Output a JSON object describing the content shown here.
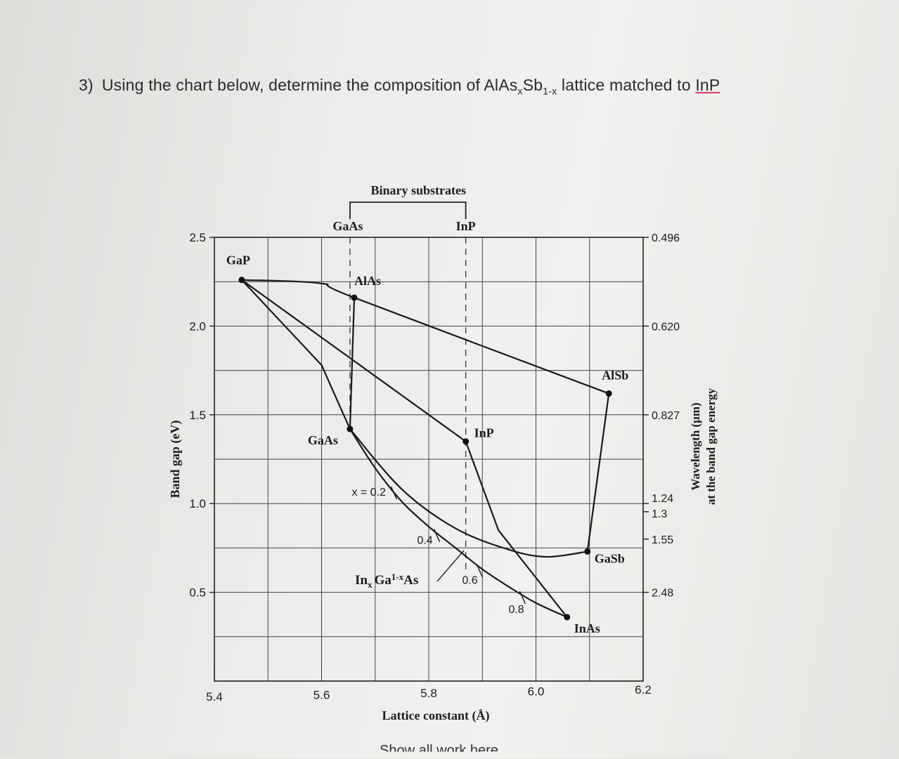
{
  "question": {
    "number": "3)",
    "text_before": "Using the chart below, determine the composition of AlAs",
    "sub1": "x",
    "mid": "Sb",
    "sub2": "1-x",
    "text_after": " lattice matched to ",
    "target": "InP"
  },
  "chart_data": {
    "type": "line",
    "title": "",
    "xlabel": "Lattice constant (Å)",
    "ylabel": "Band gap (eV)",
    "y2label_line1": "Wavelength (μm)",
    "y2label_line2": "at the band gap energy",
    "xlim": [
      5.4,
      6.2
    ],
    "ylim": [
      0.0,
      2.5
    ],
    "x_ticks": [
      "5.4",
      "5.6",
      "5.8",
      "6.0",
      "6.2"
    ],
    "y_ticks": [
      "0.5",
      "1.0",
      "1.5",
      "2.0",
      "2.5"
    ],
    "y2_ticks": [
      {
        "label": "0.496",
        "energy": 2.5
      },
      {
        "label": "0.620",
        "energy": 2.0
      },
      {
        "label": "0.827",
        "energy": 1.5
      },
      {
        "label": "1.24",
        "energy": 1.0
      },
      {
        "label": "1.3",
        "energy": 0.954
      },
      {
        "label": "1.55",
        "energy": 0.8
      },
      {
        "label": "2.48",
        "energy": 0.5
      }
    ],
    "grid": true,
    "binary_substrates": {
      "label": "Binary substrates",
      "GaAs": "GaAs",
      "InP": "InP",
      "x": [
        5.653,
        5.869
      ]
    },
    "points": [
      {
        "name": "GaP",
        "x": 5.451,
        "y": 2.26
      },
      {
        "name": "AlAs",
        "x": 5.661,
        "y": 2.16
      },
      {
        "name": "AlSb",
        "x": 6.136,
        "y": 1.62
      },
      {
        "name": "GaAs",
        "x": 5.653,
        "y": 1.42
      },
      {
        "name": "InP",
        "x": 5.869,
        "y": 1.35
      },
      {
        "name": "GaSb",
        "x": 6.096,
        "y": 0.73
      },
      {
        "name": "InAs",
        "x": 6.058,
        "y": 0.36
      }
    ],
    "curves": [
      {
        "name": "GaP-AlAs-AlSb",
        "x": [
          5.451,
          5.6,
          5.661,
          6.136
        ],
        "y": [
          2.26,
          2.24,
          2.16,
          1.62
        ]
      },
      {
        "name": "GaP-GaAs",
        "x": [
          5.451,
          5.6,
          5.653
        ],
        "y": [
          2.26,
          1.78,
          1.42
        ]
      },
      {
        "name": "AlAs-GaAs",
        "x": [
          5.661,
          5.653
        ],
        "y": [
          2.16,
          1.42
        ]
      },
      {
        "name": "GaP-InP",
        "x": [
          5.451,
          5.869
        ],
        "y": [
          2.26,
          1.35
        ]
      },
      {
        "name": "InP-InAs",
        "x": [
          5.869,
          5.93,
          6.058
        ],
        "y": [
          1.35,
          0.85,
          0.36
        ]
      },
      {
        "name": "AlSb-GaSb",
        "x": [
          6.136,
          6.096
        ],
        "y": [
          1.62,
          0.73
        ]
      },
      {
        "name": "GaAs-GaSb",
        "x": [
          5.653,
          5.75,
          5.85,
          5.95,
          6.02,
          6.096
        ],
        "y": [
          1.42,
          1.08,
          0.86,
          0.74,
          0.7,
          0.73
        ]
      },
      {
        "name": "InxGa1-xAs",
        "x": [
          5.653,
          5.7,
          5.75,
          5.8,
          5.85,
          5.9,
          5.95,
          6.0,
          6.058
        ],
        "y": [
          1.42,
          1.2,
          1.01,
          0.87,
          0.75,
          0.63,
          0.53,
          0.44,
          0.36
        ]
      }
    ],
    "composition_marks": [
      {
        "label": "x = 0.2",
        "x": 5.735,
        "y": 1.06
      },
      {
        "label": "0.4",
        "x": 5.815,
        "y": 0.82
      },
      {
        "label": "0.6",
        "x": 5.895,
        "y": 0.62
      },
      {
        "label": "0.8",
        "x": 5.975,
        "y": 0.47
      }
    ],
    "series_label": {
      "text_in": "In",
      "sub_x": "x",
      "text_ga": "Ga",
      "sub_1x": "1-x",
      "text_as": "As"
    }
  },
  "footer_fragment": "Show all work here"
}
